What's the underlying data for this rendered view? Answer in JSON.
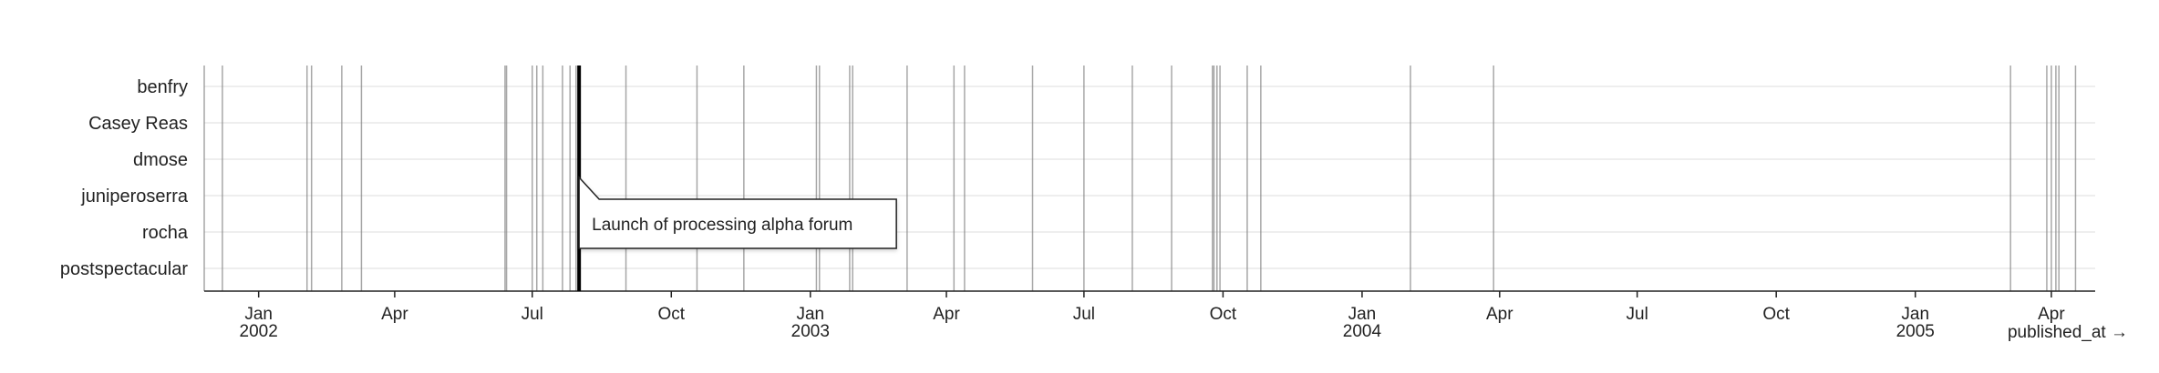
{
  "chart_data": {
    "type": "timeline",
    "xlabel": "published_at →",
    "x_domain": [
      "2001-11-26",
      "2005-04-30"
    ],
    "rows": [
      "benfry",
      "Casey Reas",
      "dmose",
      "juniperoserra",
      "rocha",
      "postspectacular"
    ],
    "x_ticks": [
      {
        "date": "2002-01-01",
        "label": "Jan",
        "sublabel": "2002"
      },
      {
        "date": "2002-04-01",
        "label": "Apr",
        "sublabel": ""
      },
      {
        "date": "2002-07-01",
        "label": "Jul",
        "sublabel": ""
      },
      {
        "date": "2002-10-01",
        "label": "Oct",
        "sublabel": ""
      },
      {
        "date": "2003-01-01",
        "label": "Jan",
        "sublabel": "2003"
      },
      {
        "date": "2003-04-01",
        "label": "Apr",
        "sublabel": ""
      },
      {
        "date": "2003-07-01",
        "label": "Jul",
        "sublabel": ""
      },
      {
        "date": "2003-10-01",
        "label": "Oct",
        "sublabel": ""
      },
      {
        "date": "2004-01-01",
        "label": "Jan",
        "sublabel": "2004"
      },
      {
        "date": "2004-04-01",
        "label": "Apr",
        "sublabel": ""
      },
      {
        "date": "2004-07-01",
        "label": "Jul",
        "sublabel": ""
      },
      {
        "date": "2004-10-01",
        "label": "Oct",
        "sublabel": ""
      },
      {
        "date": "2005-01-01",
        "label": "Jan",
        "sublabel": "2005"
      },
      {
        "date": "2005-04-01",
        "label": "Apr",
        "sublabel": ""
      }
    ],
    "events": [
      "2001-11-26",
      "2001-12-08",
      "2002-02-02",
      "2002-02-05",
      "2002-02-25",
      "2002-03-10",
      "2002-06-13",
      "2002-06-14",
      "2002-07-01",
      "2002-07-04",
      "2002-07-08",
      "2002-07-21",
      "2002-07-26",
      "2002-07-30",
      "2002-09-01",
      "2002-10-18",
      "2002-11-18",
      "2003-01-05",
      "2003-01-07",
      "2003-01-27",
      "2003-01-29",
      "2003-03-06",
      "2003-04-06",
      "2003-04-13",
      "2003-05-28",
      "2003-07-01",
      "2003-08-02",
      "2003-08-28",
      "2003-09-24",
      "2003-09-25",
      "2003-09-27",
      "2003-09-29",
      "2003-10-17",
      "2003-10-26",
      "2004-02-02",
      "2004-03-28",
      "2005-03-05",
      "2005-03-29",
      "2005-04-01",
      "2005-04-04",
      "2005-04-06",
      "2005-04-17"
    ],
    "highlight": {
      "date": "2002-08-01",
      "label": "Launch of processing alpha forum"
    },
    "grid": true
  }
}
